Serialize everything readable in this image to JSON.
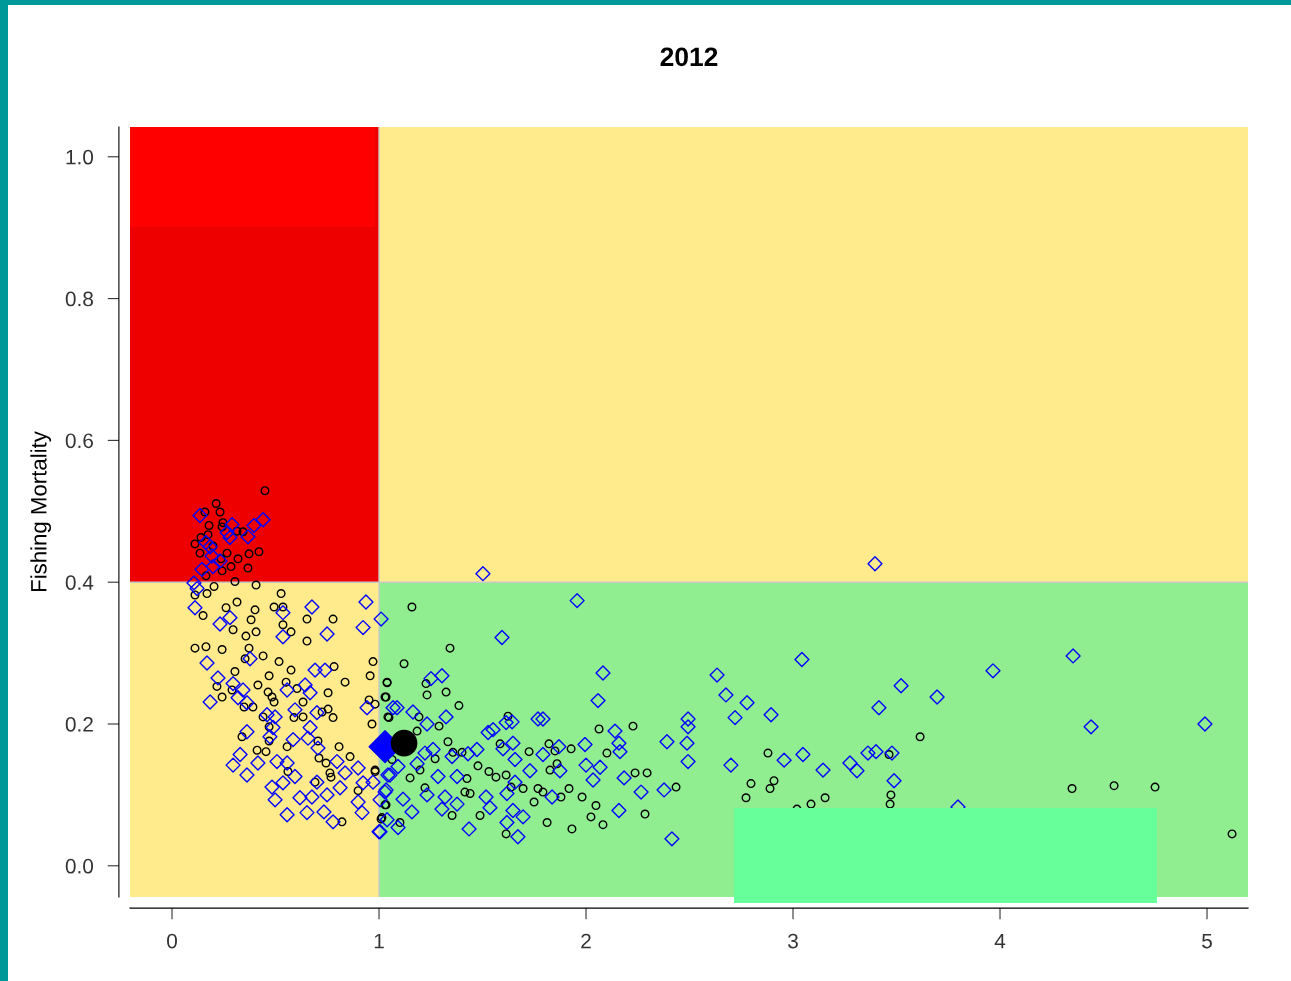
{
  "chart_data": {
    "type": "scatter",
    "title": "2012",
    "ylabel": "Fishing Mortality",
    "xlim": [
      -0.203,
      5.198
    ],
    "ylim": [
      -0.044,
      1.042
    ],
    "xticks": [
      0,
      1,
      2,
      3,
      4,
      5
    ],
    "yticks": [
      {
        "value": 0,
        "label": "0.0"
      },
      {
        "value": 0.2,
        "label": "0.2"
      },
      {
        "value": 0.4,
        "label": "0.4"
      },
      {
        "value": 0.6,
        "label": "0.6"
      },
      {
        "value": 0.8,
        "label": "0.8"
      },
      {
        "value": 1.0,
        "label": "1.0"
      }
    ],
    "grid": false,
    "legend": false,
    "ref_lines": [
      {
        "axis": "x",
        "value": 1,
        "color": "#c8c8c8"
      },
      {
        "axis": "y",
        "value": 0.4,
        "color": "#c8c8c8"
      }
    ],
    "series": [
      {
        "color": "#000000",
        "marker": "circle",
        "x": [
          0.449,
          0.213,
          0.232,
          0.159,
          0.179,
          0.246,
          0.242,
          0.314,
          0.343,
          0.174,
          0.14,
          0.111,
          0.198,
          0.135,
          0.266,
          0.372,
          0.42,
          0.319,
          0.237,
          0.285,
          0.367,
          0.242,
          0.164,
          0.304,
          0.203,
          0.406,
          0.111,
          0.169,
          0.527,
          0.314,
          0.261,
          0.401,
          0.493,
          0.536,
          0.15,
          0.652,
          0.778,
          0.382,
          0.536,
          0.295,
          0.406,
          0.575,
          0.357,
          0.652,
          0.111,
          0.164,
          0.242,
          0.372,
          0.44,
          0.353,
          0.517,
          0.971,
          0.575,
          0.304,
          0.469,
          0.783,
          0.957,
          0.551,
          0.836,
          0.415,
          0.217,
          0.29,
          0.464,
          0.604,
          0.754,
          0.242,
          0.483,
          0.493,
          0.633,
          1.039,
          1.034,
          0.952,
          0.981,
          0.348,
          0.391,
          0.754,
          0.725,
          0.44,
          0.778,
          0.589,
          0.633,
          0.966,
          1.048,
          0.469,
          0.338,
          0.469,
          0.705,
          0.807,
          0.556,
          0.411,
          0.454,
          0.86,
          0.71,
          0.744,
          0.56,
          0.763,
          0.768,
          0.981,
          0.691,
          0.899,
          1.034,
          1.01,
          0.821,
          1.159,
          1.343,
          1.121,
          1.039,
          1.227,
          1.232,
          1.324,
          1.029,
          1.386,
          1.043,
          1.193,
          1.29,
          1.184,
          1.333,
          1.585,
          1.623,
          1.821,
          1.928,
          2.101,
          2.063,
          2.227,
          1.85,
          1.725,
          1.357,
          1.401,
          1.271,
          1.063,
          1.198,
          1.478,
          1.531,
          1.565,
          1.614,
          1.826,
          1.86,
          1.15,
          1.425,
          1.44,
          1.415,
          1.222,
          1.696,
          1.768,
          1.792,
          1.918,
          1.879,
          1.981,
          1.638,
          1.749,
          2.048,
          2.024,
          2.082,
          1.932,
          1.812,
          1.488,
          1.353,
          1.614,
          0.981,
          1.014,
          1.101,
          1.029,
          2.295,
          2.237,
          2.285,
          2.435,
          3.614,
          2.879,
          3.464,
          2.797,
          2.908,
          2.889,
          2.773,
          3.087,
          3.155,
          3.019,
          3.473,
          3.469,
          4.348,
          4.551,
          4.749,
          5.121
        ],
        "values": [
          0.529,
          0.511,
          0.499,
          0.499,
          0.48,
          0.484,
          0.478,
          0.472,
          0.471,
          0.467,
          0.463,
          0.454,
          0.451,
          0.441,
          0.441,
          0.44,
          0.443,
          0.433,
          0.433,
          0.422,
          0.42,
          0.416,
          0.409,
          0.401,
          0.394,
          0.396,
          0.382,
          0.384,
          0.384,
          0.372,
          0.364,
          0.361,
          0.365,
          0.365,
          0.353,
          0.348,
          0.348,
          0.347,
          0.34,
          0.333,
          0.33,
          0.33,
          0.324,
          0.317,
          0.307,
          0.309,
          0.305,
          0.307,
          0.296,
          0.292,
          0.288,
          0.288,
          0.276,
          0.274,
          0.268,
          0.281,
          0.268,
          0.259,
          0.259,
          0.255,
          0.253,
          0.248,
          0.245,
          0.25,
          0.244,
          0.238,
          0.238,
          0.231,
          0.231,
          0.259,
          0.238,
          0.234,
          0.228,
          0.224,
          0.224,
          0.221,
          0.217,
          0.21,
          0.209,
          0.209,
          0.21,
          0.2,
          0.209,
          0.196,
          0.182,
          0.176,
          0.176,
          0.168,
          0.168,
          0.163,
          0.161,
          0.154,
          0.152,
          0.145,
          0.133,
          0.131,
          0.125,
          0.133,
          0.118,
          0.106,
          0.086,
          0.066,
          0.062,
          0.365,
          0.307,
          0.285,
          0.258,
          0.257,
          0.241,
          0.245,
          0.238,
          0.226,
          0.21,
          0.21,
          0.197,
          0.19,
          0.175,
          0.172,
          0.211,
          0.172,
          0.165,
          0.159,
          0.193,
          0.197,
          0.162,
          0.161,
          0.16,
          0.16,
          0.151,
          0.15,
          0.135,
          0.141,
          0.133,
          0.125,
          0.128,
          0.135,
          0.144,
          0.124,
          0.123,
          0.102,
          0.104,
          0.11,
          0.109,
          0.109,
          0.104,
          0.109,
          0.097,
          0.097,
          0.111,
          0.09,
          0.085,
          0.069,
          0.058,
          0.052,
          0.061,
          0.071,
          0.071,
          0.045,
          0.135,
          0.068,
          0.061,
          0.086,
          0.131,
          0.131,
          0.073,
          0.111,
          0.182,
          0.159,
          0.157,
          0.116,
          0.12,
          0.109,
          0.096,
          0.087,
          0.096,
          0.08,
          0.1,
          0.087,
          0.109,
          0.113,
          0.111,
          0.045
        ]
      },
      {
        "color": "#0000ff",
        "marker": "diamond",
        "x": [
          0.135,
          0.44,
          0.396,
          0.29,
          0.266,
          0.367,
          0.28,
          0.164,
          0.184,
          0.193,
          0.232,
          0.198,
          0.145,
          0.106,
          0.121,
          0.111,
          0.676,
          0.937,
          1.01,
          0.536,
          0.28,
          0.232,
          0.536,
          0.749,
          0.923,
          0.377,
          0.169,
          0.222,
          0.295,
          0.343,
          0.184,
          0.319,
          0.362,
          0.691,
          0.739,
          0.643,
          0.556,
          0.667,
          0.459,
          0.498,
          0.594,
          0.7,
          0.942,
          1.068,
          0.667,
          0.488,
          0.362,
          0.473,
          0.585,
          0.657,
          0.705,
          0.329,
          0.295,
          0.415,
          0.507,
          0.556,
          0.797,
          0.899,
          0.594,
          0.362,
          0.836,
          0.7,
          0.536,
          0.923,
          0.971,
          0.483,
          0.812,
          0.498,
          0.618,
          0.676,
          0.749,
          0.899,
          0.556,
          0.652,
          0.734,
          0.778,
          0.918,
          1.029,
          1.039,
          1.0,
          1.043,
          1.502,
          1.957,
          1.594,
          2.082,
          1.251,
          1.304,
          2.058,
          1.087,
          1.164,
          1.324,
          1.232,
          1.527,
          1.551,
          1.643,
          1.614,
          1.768,
          1.792,
          2.14,
          2.159,
          2.164,
          2.391,
          2.488,
          2.493,
          2.493,
          2.493,
          1.995,
          1.869,
          1.647,
          1.599,
          1.473,
          1.43,
          1.261,
          1.222,
          1.353,
          1.657,
          1.792,
          2.0,
          2.068,
          1.874,
          1.729,
          1.092,
          1.184,
          1.377,
          1.053,
          1.285,
          1.657,
          2.034,
          2.184,
          2.266,
          2.377,
          1.034,
          1.005,
          1.116,
          1.232,
          1.319,
          1.517,
          1.618,
          1.836,
          1.377,
          1.536,
          1.159,
          1.304,
          1.647,
          1.696,
          2.159,
          1.092,
          1.005,
          1.435,
          1.618,
          1.671,
          2.415,
          3.396,
          3.043,
          4.353,
          2.633,
          3.966,
          2.676,
          2.778,
          3.522,
          3.696,
          2.72,
          2.894,
          3.415,
          4.44,
          4.99,
          2.7,
          2.957,
          3.048,
          3.145,
          3.275,
          3.309,
          3.362,
          3.401,
          3.478,
          3.488,
          3.797
        ],
        "values": [
          0.494,
          0.488,
          0.48,
          0.481,
          0.47,
          0.464,
          0.463,
          0.456,
          0.45,
          0.437,
          0.43,
          0.422,
          0.418,
          0.399,
          0.391,
          0.364,
          0.365,
          0.372,
          0.348,
          0.357,
          0.35,
          0.341,
          0.323,
          0.327,
          0.336,
          0.292,
          0.286,
          0.265,
          0.257,
          0.248,
          0.231,
          0.237,
          0.23,
          0.276,
          0.276,
          0.255,
          0.248,
          0.244,
          0.213,
          0.21,
          0.22,
          0.216,
          0.223,
          0.223,
          0.195,
          0.195,
          0.189,
          0.182,
          0.178,
          0.18,
          0.166,
          0.157,
          0.142,
          0.145,
          0.147,
          0.145,
          0.147,
          0.138,
          0.126,
          0.128,
          0.131,
          0.118,
          0.117,
          0.117,
          0.118,
          0.111,
          0.11,
          0.093,
          0.096,
          0.097,
          0.1,
          0.09,
          0.072,
          0.075,
          0.076,
          0.062,
          0.075,
          0.104,
          0.065,
          0.048,
          0.128,
          0.412,
          0.374,
          0.322,
          0.272,
          0.264,
          0.268,
          0.233,
          0.223,
          0.217,
          0.21,
          0.2,
          0.188,
          0.192,
          0.203,
          0.202,
          0.207,
          0.207,
          0.19,
          0.173,
          0.161,
          0.175,
          0.173,
          0.207,
          0.196,
          0.147,
          0.171,
          0.168,
          0.173,
          0.165,
          0.164,
          0.158,
          0.164,
          0.159,
          0.154,
          0.15,
          0.157,
          0.142,
          0.139,
          0.134,
          0.134,
          0.14,
          0.144,
          0.126,
          0.128,
          0.126,
          0.118,
          0.121,
          0.124,
          0.104,
          0.107,
          0.107,
          0.093,
          0.094,
          0.1,
          0.097,
          0.097,
          0.102,
          0.097,
          0.087,
          0.082,
          0.076,
          0.08,
          0.078,
          0.069,
          0.078,
          0.054,
          0.048,
          0.052,
          0.061,
          0.041,
          0.038,
          0.426,
          0.291,
          0.296,
          0.269,
          0.275,
          0.241,
          0.23,
          0.254,
          0.238,
          0.209,
          0.213,
          0.223,
          0.196,
          0.2,
          0.142,
          0.149,
          0.157,
          0.135,
          0.145,
          0.134,
          0.159,
          0.161,
          0.159,
          0.12,
          0.083
        ]
      },
      {
        "color": "#0000ff",
        "marker": "diamond",
        "x": [
          1.029
        ],
        "values": [
          0.168
        ]
      },
      {
        "color": "#000000",
        "marker": "circle",
        "x": [
          1.121
        ],
        "values": [
          0.173
        ]
      }
    ]
  }
}
